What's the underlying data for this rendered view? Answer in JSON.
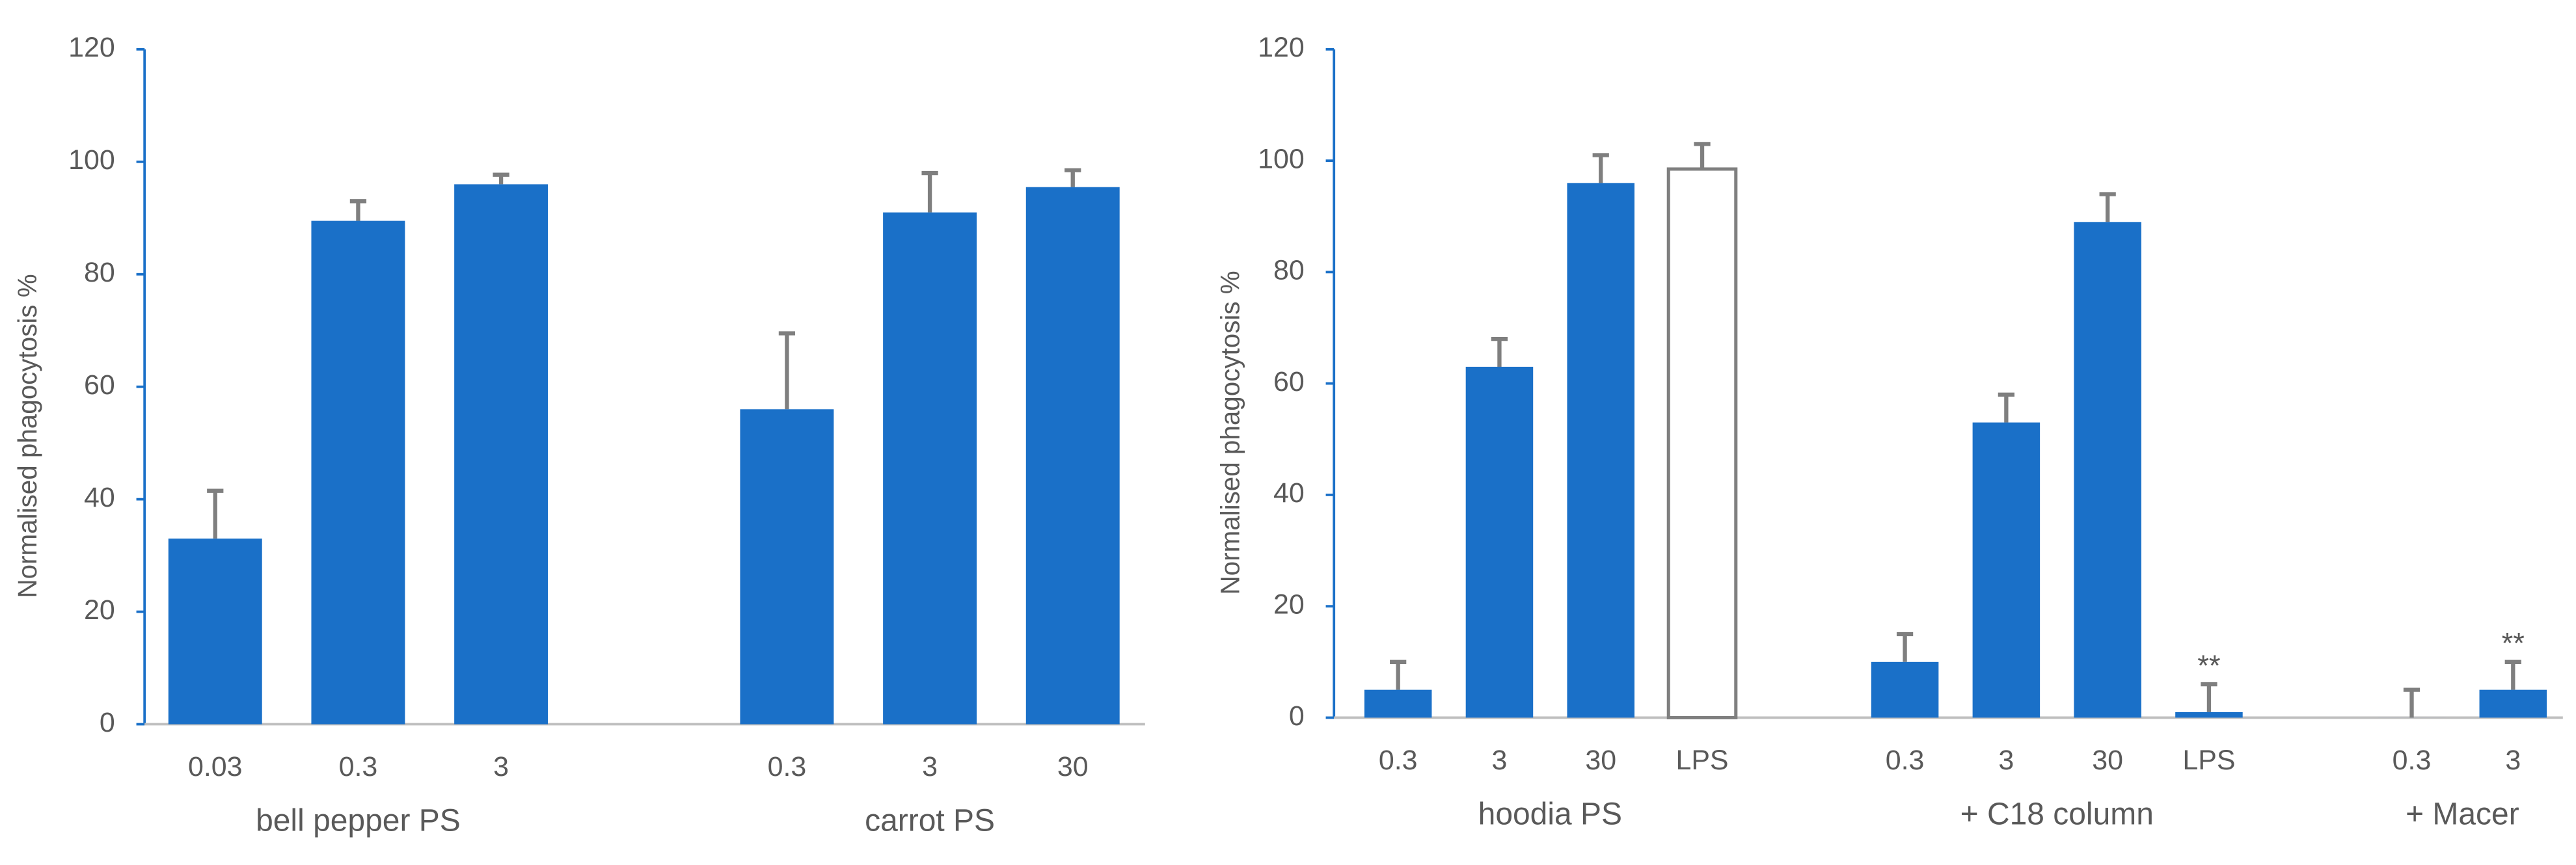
{
  "chart_data": [
    {
      "type": "bar",
      "y_label": "Normalised phagocytosis %",
      "ylim": [
        0,
        120
      ],
      "yticks": [
        0,
        20,
        40,
        60,
        80,
        100,
        120
      ],
      "color": "#1a70c8",
      "error_color": "#7f7f7f",
      "groups": [
        {
          "label": "bell pepper PS",
          "categories": [
            "0.03",
            "0.3",
            "3"
          ],
          "values": [
            33,
            89.5,
            96
          ],
          "errors": [
            8.5,
            3.5,
            1.7
          ]
        },
        {
          "label": "carrot PS",
          "categories": [
            "0.3",
            "3",
            "30"
          ],
          "values": [
            56,
            91,
            95.5
          ],
          "errors": [
            13.5,
            7,
            3
          ]
        }
      ]
    },
    {
      "type": "bar",
      "y_label": "Normalised phagocytosis %",
      "ylim": [
        0,
        120
      ],
      "yticks": [
        0,
        20,
        40,
        60,
        80,
        100,
        120
      ],
      "color": "#1a70c8",
      "error_color": "#7f7f7f",
      "groups": [
        {
          "label": "hoodia PS",
          "categories": [
            "0.3",
            "3",
            "30",
            "LPS"
          ],
          "values": [
            5,
            63,
            96,
            98.5
          ],
          "errors": [
            5,
            5,
            5,
            4.5
          ],
          "colors": [
            "#1a70c8",
            "#1a70c8",
            "#1a70c8",
            "#ffffff"
          ]
        },
        {
          "label": "+ C18 column",
          "categories": [
            "0.3",
            "3",
            "30",
            "LPS"
          ],
          "values": [
            10,
            53,
            89,
            1
          ],
          "errors": [
            5,
            5,
            5,
            5
          ],
          "annotations": [
            {
              "index": 3,
              "text": "**"
            }
          ]
        },
        {
          "label": "+ Macer",
          "categories": [
            "0.3",
            "3"
          ],
          "values": [
            0,
            5
          ],
          "errors": [
            5,
            5
          ],
          "annotations": [
            {
              "index": 1,
              "text": "**"
            }
          ]
        }
      ]
    }
  ]
}
